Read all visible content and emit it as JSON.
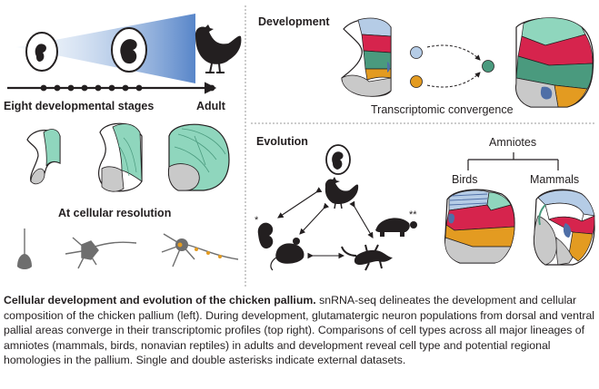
{
  "panels": {
    "left": {
      "stage_label": "Eight developmental stages",
      "adult_label": "Adult",
      "cellular_label": "At cellular resolution"
    },
    "development": {
      "title": "Development",
      "convergence_label": "Transcriptomic convergence"
    },
    "evolution": {
      "title": "Evolution",
      "amniotes_label": "Amniotes",
      "birds_label": "Birds",
      "mammals_label": "Mammals",
      "single_asterisk": "*",
      "double_asterisk": "**"
    }
  },
  "caption": {
    "title": "Cellular development and evolution of the chicken pallium.",
    "body": " snRNA-seq delineates the development and cellular composition of the chicken pallium (left). During development, glutamatergic neuron populations from dorsal and ventral pallial areas converge in their transcriptomic profiles (top right). Comparisons of cell types across all major lineages of amniotes (mammals, birds, nonavian reptiles) in adults and development reveal cell type and potential regional homologies in the pallium. Single and double asterisks indicate external datasets."
  },
  "colors": {
    "mint": "#8fd6bd",
    "teal": "#4a9a7e",
    "crimson": "#d6244d",
    "gold": "#e39b21",
    "steel_blue": "#4f6fa7",
    "light_blue": "#b5cce6",
    "gray": "#c9c9c9",
    "dark": "#231f20"
  }
}
